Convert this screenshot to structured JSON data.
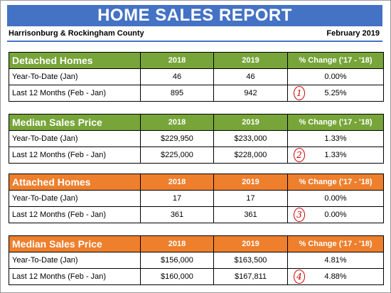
{
  "report": {
    "title": "HOME SALES REPORT",
    "region": "Harrisonburg & Rockingham County",
    "date": "February 2019"
  },
  "colors": {
    "title_bar": "#4472c4",
    "green_header": "#77a539",
    "orange_header": "#ee7f2d",
    "annotation": "#cc0000"
  },
  "tables": [
    {
      "title": "Detached Homes",
      "col_2018": "2018",
      "col_2019": "2019",
      "col_change": "% Change ('17 - '18)",
      "rows": [
        {
          "label": "Year-To-Date (Jan)",
          "v2018": "46",
          "v2019": "46",
          "change": "0.00%",
          "note": ""
        },
        {
          "label": "Last 12 Months (Feb - Jan)",
          "v2018": "895",
          "v2019": "942",
          "change": "5.25%",
          "note": "1"
        }
      ]
    },
    {
      "title": "Median Sales Price",
      "col_2018": "2018",
      "col_2019": "2019",
      "col_change": "% Change ('17 - '18)",
      "rows": [
        {
          "label": "Year-To-Date (Jan)",
          "v2018": "$229,950",
          "v2019": "$233,000",
          "change": "1.33%",
          "note": ""
        },
        {
          "label": "Last 12 Months (Feb - Jan)",
          "v2018": "$225,000",
          "v2019": "$228,000",
          "change": "1.33%",
          "note": "2"
        }
      ]
    },
    {
      "title": "Attached Homes",
      "col_2018": "2018",
      "col_2019": "2019",
      "col_change": "% Change ('17 - '18)",
      "rows": [
        {
          "label": "Year-To-Date (Jan)",
          "v2018": "17",
          "v2019": "17",
          "change": "0.00%",
          "note": ""
        },
        {
          "label": "Last 12 Months (Feb - Jan)",
          "v2018": "361",
          "v2019": "361",
          "change": "0.00%",
          "note": "3"
        }
      ]
    },
    {
      "title": "Median Sales Price",
      "col_2018": "2018",
      "col_2019": "2019",
      "col_change": "% Change ('17 - '18)",
      "rows": [
        {
          "label": "Year-To-Date (Jan)",
          "v2018": "$156,000",
          "v2019": "$163,500",
          "change": "4.81%",
          "note": ""
        },
        {
          "label": "Last 12 Months (Feb - Jan)",
          "v2018": "$160,000",
          "v2019": "$167,811",
          "change": "4.88%",
          "note": "4"
        }
      ]
    }
  ]
}
